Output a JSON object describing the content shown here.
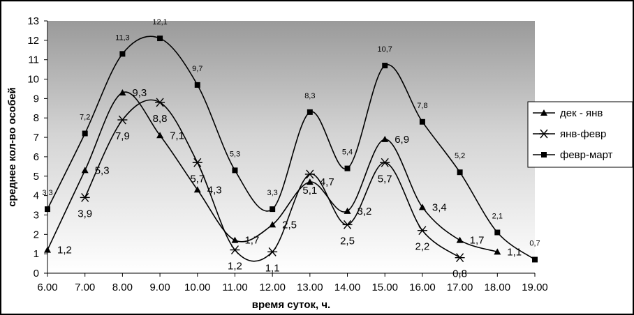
{
  "chart_data": {
    "type": "line",
    "xlabel": "время суток, ч.",
    "ylabel": "среднее кол-во особей",
    "ylim": [
      0,
      13
    ],
    "yticks": [
      "0",
      "1",
      "2",
      "3",
      "4",
      "5",
      "6",
      "7",
      "8",
      "9",
      "10",
      "11",
      "12",
      "13"
    ],
    "categories": [
      "6.00",
      "7.00",
      "8.00",
      "9.00",
      "10.00",
      "11.00",
      "12.00",
      "13.00",
      "14.00",
      "15.00",
      "16.00",
      "17.00",
      "18.00",
      "19.00"
    ],
    "grid": false,
    "legend_position": "right",
    "series": [
      {
        "name": "дек - янв",
        "marker": "triangle",
        "values": [
          1.2,
          5.3,
          9.3,
          7.1,
          4.3,
          1.7,
          2.5,
          4.7,
          3.2,
          6.9,
          3.4,
          1.7,
          1.1,
          null
        ],
        "labels": [
          "1,2",
          "5,3",
          "9,3",
          "7,1",
          "4,3",
          "1,7",
          "2,5",
          "4,7",
          "3,2",
          "6,9",
          "3,4",
          "1,7",
          "1,1",
          ""
        ]
      },
      {
        "name": "янв-февр",
        "marker": "asterisk",
        "values": [
          null,
          3.9,
          7.9,
          8.8,
          5.7,
          1.2,
          1.1,
          5.1,
          2.5,
          5.7,
          2.2,
          0.8,
          null,
          null
        ],
        "labels": [
          "",
          "3,9",
          "7,9",
          "8,8",
          "5,7",
          "1,2",
          "1,1",
          "5,1",
          "2,5",
          "5,7",
          "2,2",
          "0,8",
          "",
          ""
        ]
      },
      {
        "name": "февр-март",
        "marker": "square",
        "values": [
          3.3,
          7.2,
          11.3,
          12.1,
          9.7,
          5.3,
          3.3,
          8.3,
          5.4,
          10.7,
          7.8,
          5.2,
          2.1,
          0.7
        ],
        "labels": [
          "3,3",
          "7,2",
          "11,3",
          "12,1",
          "9,7",
          "5,3",
          "3,3",
          "8,3",
          "5,4",
          "10,7",
          "7,8",
          "5,2",
          "2,1",
          "0,7"
        ]
      }
    ]
  }
}
